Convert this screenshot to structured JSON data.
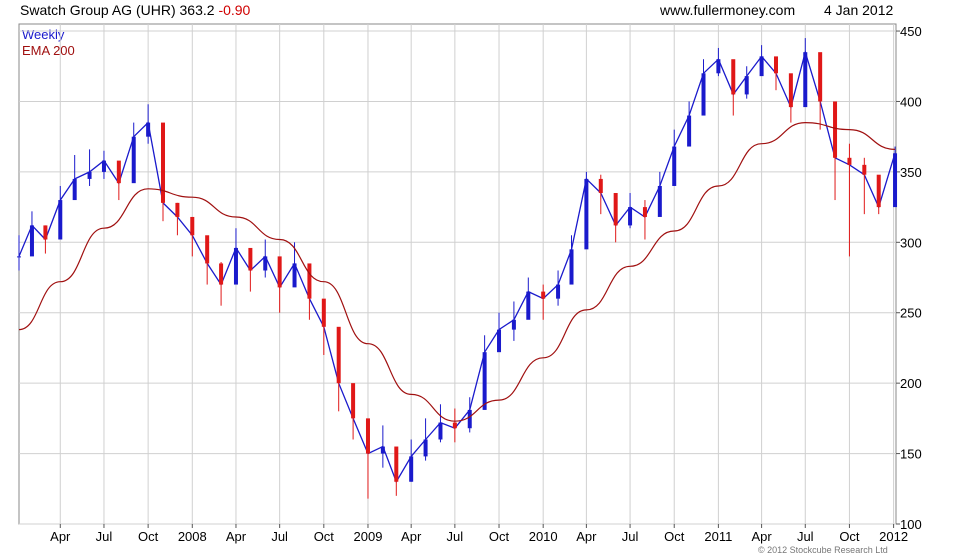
{
  "header": {
    "title": "Swatch Group AG (UHR)",
    "last": "363.2",
    "change": "-0.90",
    "site": "www.fullermoney.com",
    "date": "4 Jan 2012"
  },
  "legend": [
    {
      "label": "Weekly",
      "color": "#1a1acc"
    },
    {
      "label": "EMA 200",
      "color": "#a01010"
    }
  ],
  "copyright": "© 2012 Stockcube Research Ltd",
  "colors": {
    "up": "#1a1acc",
    "down": "#e01818",
    "ema": "#a01010",
    "grid": "#d0d0d0"
  },
  "chart_data": {
    "type": "line",
    "title": "Swatch Group AG (UHR) 363.2 -0.90",
    "xlabel": "",
    "ylabel": "",
    "ylim": [
      100,
      455
    ],
    "y_ticks": [
      100,
      150,
      200,
      250,
      300,
      350,
      400,
      450
    ],
    "y_axis_side": "right",
    "grid": true,
    "legend_position": "top-left",
    "x_range": [
      "2007-01-05",
      "2012-01-06"
    ],
    "x_ticks": [
      {
        "label": "Apr",
        "date": "2007-04-01"
      },
      {
        "label": "Jul",
        "date": "2007-07-01"
      },
      {
        "label": "Oct",
        "date": "2007-10-01"
      },
      {
        "label": "2008",
        "date": "2008-01-01"
      },
      {
        "label": "Apr",
        "date": "2008-04-01"
      },
      {
        "label": "Jul",
        "date": "2008-07-01"
      },
      {
        "label": "Oct",
        "date": "2008-10-01"
      },
      {
        "label": "2009",
        "date": "2009-01-01"
      },
      {
        "label": "Apr",
        "date": "2009-04-01"
      },
      {
        "label": "Jul",
        "date": "2009-07-01"
      },
      {
        "label": "Oct",
        "date": "2009-10-01"
      },
      {
        "label": "2010",
        "date": "2010-01-01"
      },
      {
        "label": "Apr",
        "date": "2010-04-01"
      },
      {
        "label": "Jul",
        "date": "2010-07-01"
      },
      {
        "label": "Oct",
        "date": "2010-10-01"
      },
      {
        "label": "2011",
        "date": "2011-01-01"
      },
      {
        "label": "Apr",
        "date": "2011-04-01"
      },
      {
        "label": "Jul",
        "date": "2011-07-01"
      },
      {
        "label": "Oct",
        "date": "2011-10-01"
      },
      {
        "label": "2012",
        "date": "2012-01-01"
      }
    ],
    "series": [
      {
        "name": "Weekly",
        "style": "candlestick-approx",
        "x": [
          "2007-01-05",
          "2007-02-01",
          "2007-03-01",
          "2007-04-01",
          "2007-05-01",
          "2007-06-01",
          "2007-07-01",
          "2007-08-01",
          "2007-09-01",
          "2007-10-01",
          "2007-11-01",
          "2007-12-01",
          "2008-01-01",
          "2008-02-01",
          "2008-03-01",
          "2008-04-01",
          "2008-05-01",
          "2008-06-01",
          "2008-07-01",
          "2008-08-01",
          "2008-09-01",
          "2008-10-01",
          "2008-11-01",
          "2008-12-01",
          "2009-01-01",
          "2009-02-01",
          "2009-03-01",
          "2009-04-01",
          "2009-05-01",
          "2009-06-01",
          "2009-07-01",
          "2009-08-01",
          "2009-09-01",
          "2009-10-01",
          "2009-11-01",
          "2009-12-01",
          "2010-01-01",
          "2010-02-01",
          "2010-03-01",
          "2010-04-01",
          "2010-05-01",
          "2010-06-01",
          "2010-07-01",
          "2010-08-01",
          "2010-09-01",
          "2010-10-01",
          "2010-11-01",
          "2010-12-01",
          "2011-01-01",
          "2011-02-01",
          "2011-03-01",
          "2011-04-01",
          "2011-05-01",
          "2011-06-01",
          "2011-07-01",
          "2011-08-01",
          "2011-09-01",
          "2011-10-01",
          "2011-11-01",
          "2011-12-01",
          "2012-01-04"
        ],
        "values": [
          290,
          312,
          302,
          330,
          345,
          350,
          358,
          342,
          375,
          385,
          328,
          318,
          305,
          285,
          270,
          296,
          280,
          290,
          268,
          285,
          260,
          240,
          200,
          175,
          150,
          155,
          130,
          148,
          160,
          172,
          168,
          181,
          222,
          238,
          245,
          265,
          260,
          270,
          295,
          345,
          335,
          312,
          325,
          318,
          340,
          368,
          390,
          420,
          430,
          405,
          418,
          432,
          420,
          396,
          435,
          400,
          360,
          355,
          348,
          325,
          363.2
        ],
        "highs": [
          305,
          322,
          312,
          340,
          362,
          366,
          365,
          352,
          385,
          398,
          340,
          328,
          318,
          298,
          286,
          310,
          292,
          302,
          282,
          300,
          272,
          255,
          215,
          190,
          165,
          170,
          145,
          160,
          175,
          185,
          182,
          190,
          234,
          250,
          258,
          275,
          270,
          280,
          305,
          350,
          348,
          325,
          335,
          330,
          350,
          380,
          400,
          430,
          438,
          415,
          425,
          440,
          428,
          410,
          445,
          410,
          375,
          370,
          360,
          340,
          368
        ],
        "lows": [
          280,
          300,
          292,
          318,
          335,
          340,
          345,
          330,
          362,
          370,
          315,
          305,
          290,
          270,
          255,
          282,
          265,
          275,
          250,
          270,
          245,
          220,
          180,
          160,
          118,
          140,
          120,
          130,
          145,
          158,
          158,
          165,
          205,
          225,
          230,
          250,
          245,
          255,
          280,
          330,
          320,
          300,
          310,
          302,
          325,
          355,
          378,
          405,
          418,
          390,
          402,
          420,
          408,
          385,
          420,
          380,
          330,
          290,
          320,
          320,
          348
        ]
      },
      {
        "name": "EMA 200",
        "x": [
          "2007-01-05",
          "2007-04-01",
          "2007-07-01",
          "2007-10-01",
          "2008-01-01",
          "2008-04-01",
          "2008-07-01",
          "2008-10-01",
          "2009-01-01",
          "2009-04-01",
          "2009-07-01",
          "2009-10-01",
          "2010-01-01",
          "2010-04-01",
          "2010-07-01",
          "2010-10-01",
          "2011-01-01",
          "2011-04-01",
          "2011-07-01",
          "2011-10-01",
          "2012-01-04"
        ],
        "values": [
          238,
          272,
          310,
          338,
          332,
          318,
          302,
          272,
          228,
          192,
          173,
          188,
          218,
          252,
          283,
          308,
          340,
          370,
          385,
          380,
          366
        ]
      }
    ]
  }
}
